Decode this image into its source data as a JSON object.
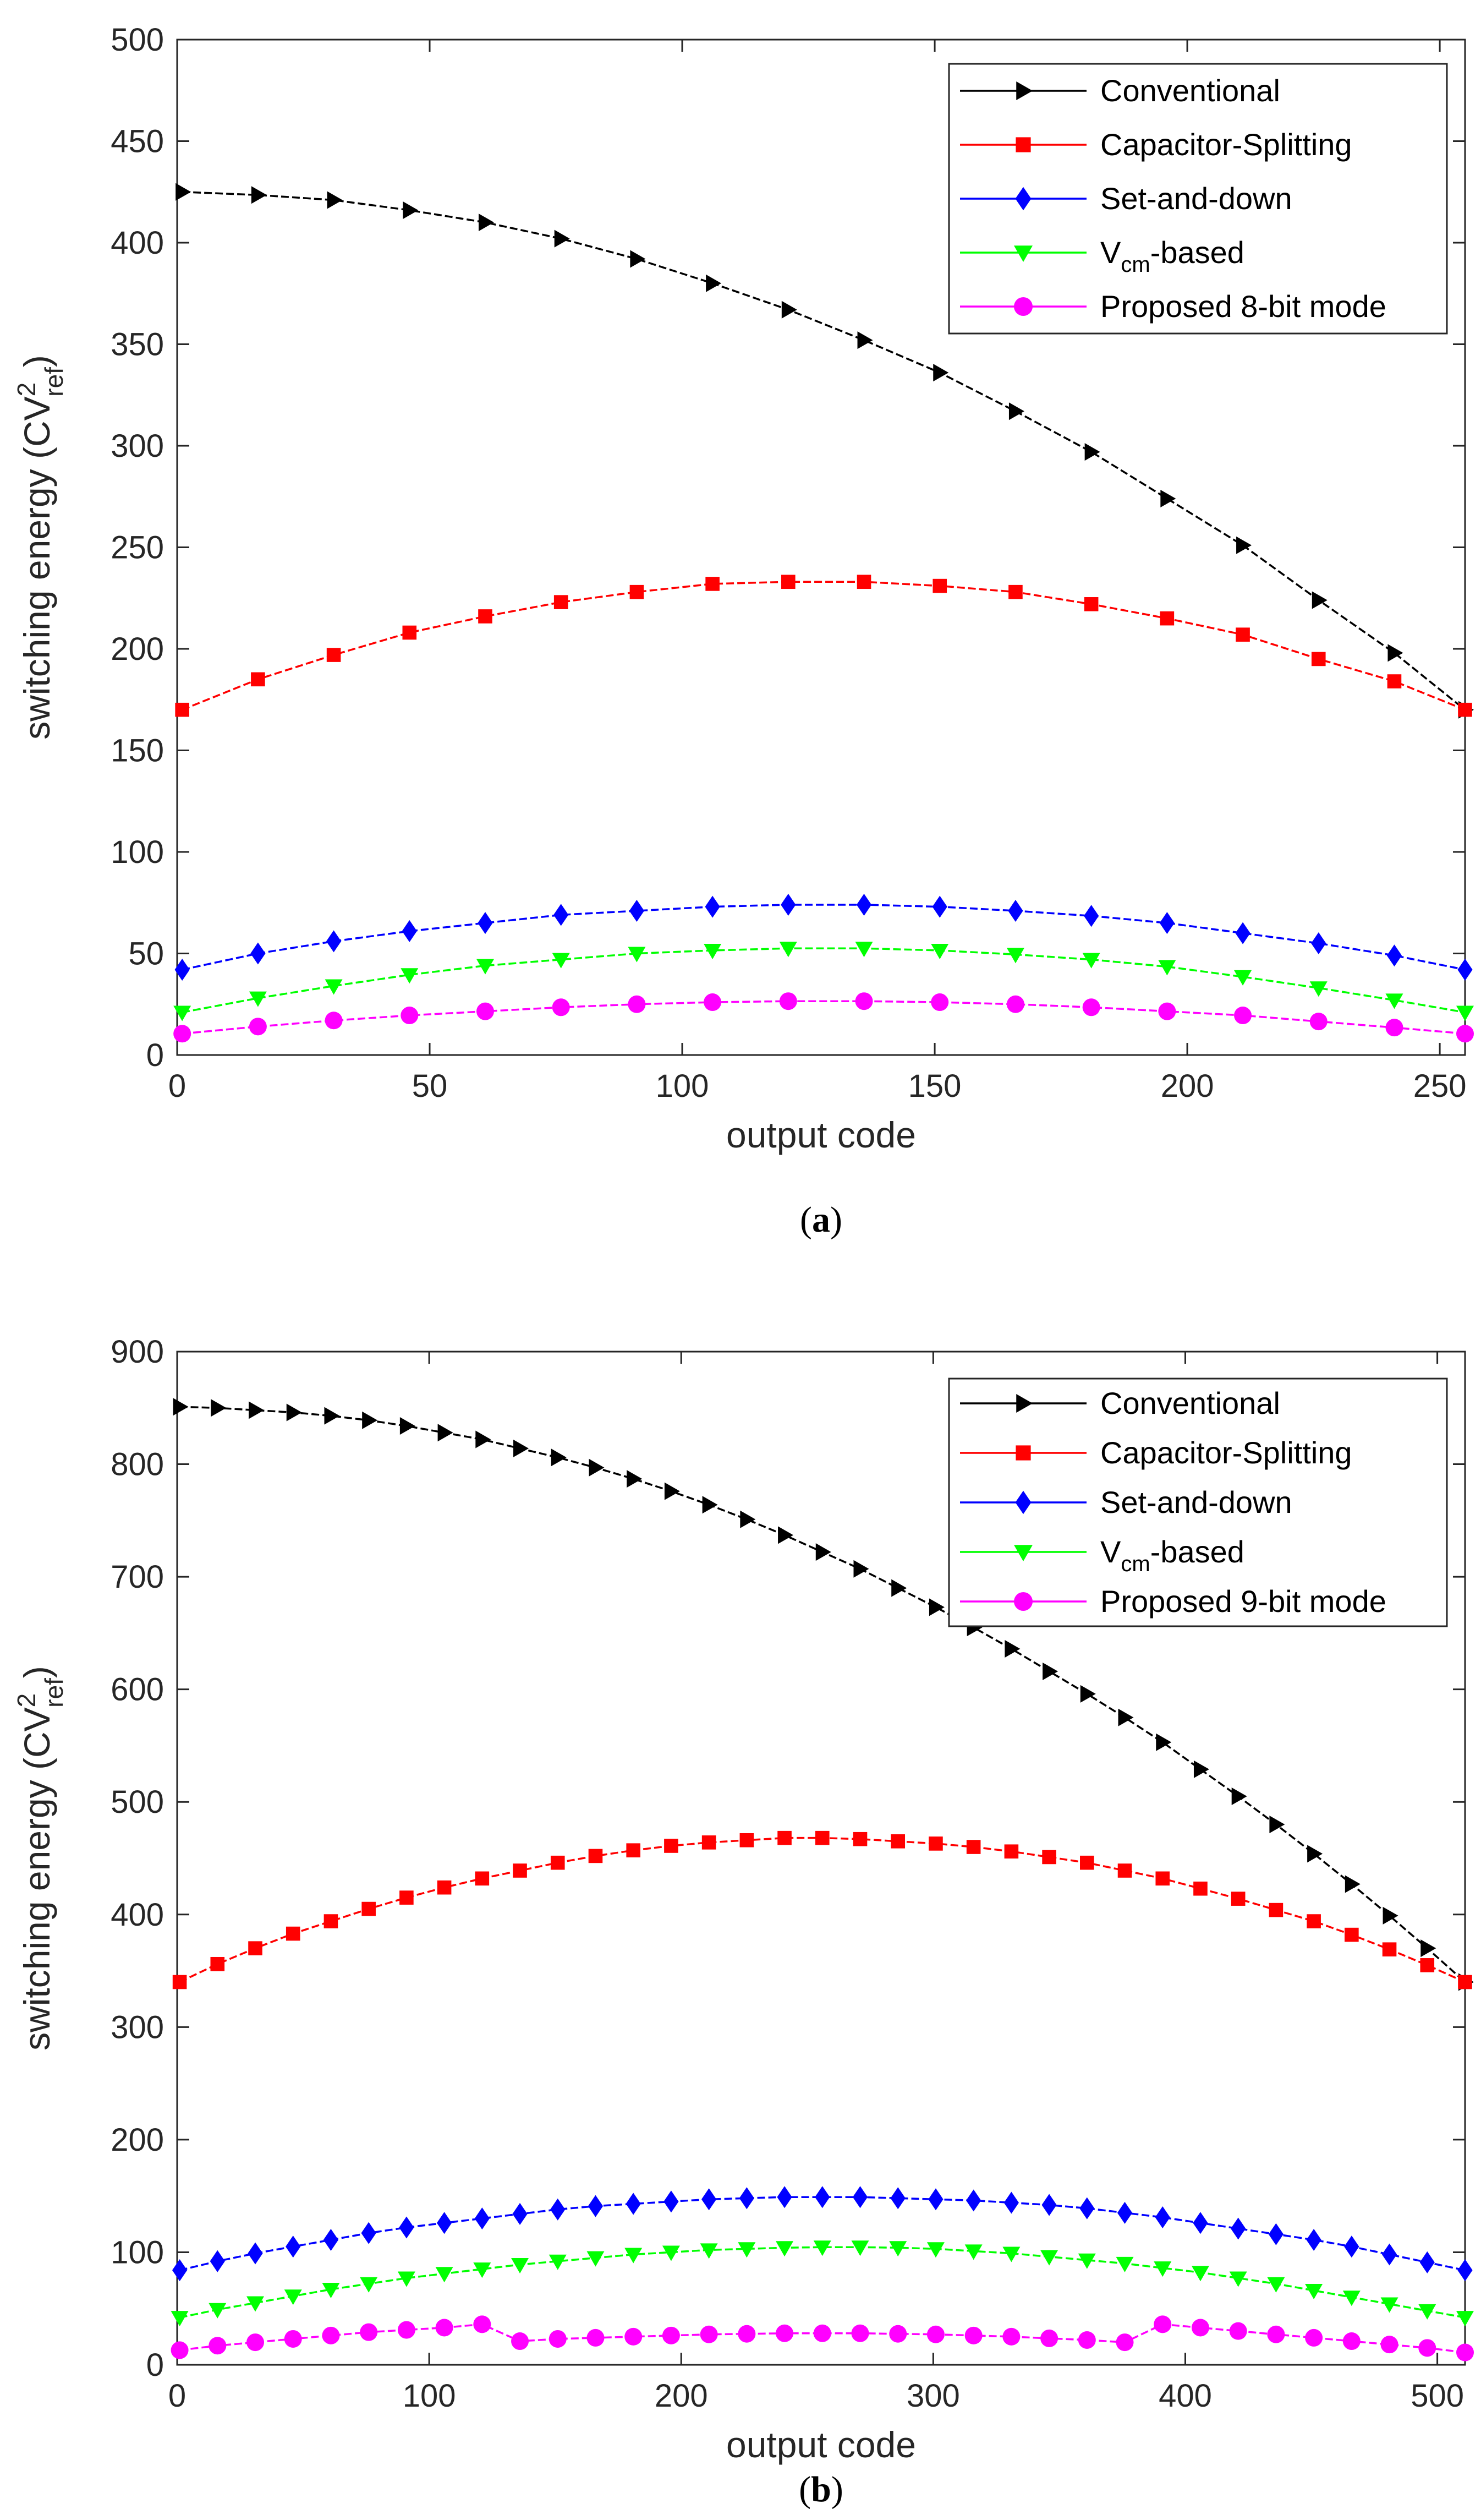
{
  "chart_data": [
    {
      "type": "line",
      "panel_label": "a",
      "xlabel": "output code",
      "ylabel_base": "switching energy (CV",
      "ylabel_sup": "2",
      "ylabel_sub": "ref",
      "ylabel_close": ")",
      "xlim": [
        0,
        255
      ],
      "ylim": [
        0,
        500
      ],
      "xticks": [
        0,
        50,
        100,
        150,
        200,
        250
      ],
      "yticks": [
        0,
        50,
        100,
        150,
        200,
        250,
        300,
        350,
        400,
        450,
        500
      ],
      "legend_position": "top-right",
      "series": [
        {
          "name": "Conventional",
          "color": "#000000",
          "marker": "triangle-right",
          "x": [
            1,
            16,
            31,
            46,
            61,
            76,
            91,
            106,
            121,
            136,
            151,
            166,
            181,
            196,
            211,
            226,
            241,
            255
          ],
          "values": [
            425,
            423.5,
            421,
            416,
            410,
            402,
            392,
            380,
            367,
            352,
            336,
            317,
            297,
            274,
            251,
            224,
            198,
            170
          ]
        },
        {
          "name": "Capacitor-Splitting",
          "color": "#ff0000",
          "marker": "square",
          "x": [
            1,
            16,
            31,
            46,
            61,
            76,
            91,
            106,
            121,
            136,
            151,
            166,
            181,
            196,
            211,
            226,
            241,
            255
          ],
          "values": [
            170,
            185,
            197,
            208,
            216,
            223,
            228,
            232,
            233,
            233,
            231,
            228,
            222,
            215,
            207,
            195,
            184,
            170
          ]
        },
        {
          "name": "Set-and-down",
          "color": "#0000ff",
          "marker": "diamond",
          "x": [
            1,
            16,
            31,
            46,
            61,
            76,
            91,
            106,
            121,
            136,
            151,
            166,
            181,
            196,
            211,
            226,
            241,
            255
          ],
          "values": [
            42,
            50,
            56,
            61,
            65,
            69,
            71,
            73,
            74,
            74,
            73,
            71,
            68.5,
            65,
            60,
            55,
            49,
            42
          ]
        },
        {
          "name_prefix": "V",
          "name_sub": "cm",
          "name_suffix": "-based",
          "color": "#00ff00",
          "marker": "triangle-down",
          "x": [
            1,
            16,
            31,
            46,
            61,
            76,
            91,
            106,
            121,
            136,
            151,
            166,
            181,
            196,
            211,
            226,
            241,
            255
          ],
          "values": [
            21,
            28,
            34,
            39.5,
            44,
            47,
            50,
            51.5,
            52.5,
            52.5,
            51.5,
            49.5,
            47,
            43.5,
            38.5,
            33,
            27,
            21
          ]
        },
        {
          "name": "Proposed 8-bit mode",
          "color": "#ff00ff",
          "marker": "circle",
          "x": [
            1,
            16,
            31,
            46,
            61,
            76,
            91,
            106,
            121,
            136,
            151,
            166,
            181,
            196,
            211,
            226,
            241,
            255
          ],
          "values": [
            10.5,
            14,
            17,
            19.5,
            21.5,
            23.5,
            25,
            26,
            26.5,
            26.5,
            26,
            25,
            23.5,
            21.5,
            19.5,
            16.5,
            13.5,
            10.5
          ]
        }
      ]
    },
    {
      "type": "line",
      "panel_label": "b",
      "xlabel": "output code",
      "ylabel_base": "switching energy (CV",
      "ylabel_sup": "2",
      "ylabel_sub": "ref",
      "ylabel_close": ")",
      "xlim": [
        0,
        511
      ],
      "ylim": [
        0,
        900
      ],
      "xticks": [
        0,
        100,
        200,
        300,
        400,
        500
      ],
      "yticks": [
        0,
        100,
        200,
        300,
        400,
        500,
        600,
        700,
        800,
        900
      ],
      "legend_position": "top-right",
      "series": [
        {
          "name": "Conventional",
          "color": "#000000",
          "marker": "triangle-right",
          "x": [
            1,
            16,
            31,
            46,
            61,
            76,
            91,
            106,
            121,
            136,
            151,
            166,
            181,
            196,
            211,
            226,
            241,
            256,
            271,
            286,
            301,
            316,
            331,
            346,
            361,
            376,
            391,
            406,
            421,
            436,
            451,
            466,
            481,
            496,
            511
          ],
          "values": [
            851,
            850,
            848,
            846,
            843,
            839,
            834,
            828,
            822,
            814,
            806,
            797,
            787,
            776,
            764,
            751,
            737,
            722,
            707,
            690,
            673,
            655,
            636,
            616,
            596,
            575,
            553,
            529,
            505,
            480,
            454,
            427,
            399,
            370,
            340
          ]
        },
        {
          "name": "Capacitor-Splitting",
          "color": "#ff0000",
          "marker": "square",
          "x": [
            1,
            16,
            31,
            46,
            61,
            76,
            91,
            106,
            121,
            136,
            151,
            166,
            181,
            196,
            211,
            226,
            241,
            256,
            271,
            286,
            301,
            316,
            331,
            346,
            361,
            376,
            391,
            406,
            421,
            436,
            451,
            466,
            481,
            496,
            511
          ],
          "values": [
            340,
            356,
            370,
            383,
            394,
            405,
            415,
            424,
            432,
            439,
            446,
            452,
            457,
            461,
            464,
            466,
            468,
            468,
            467,
            465,
            463,
            460,
            456,
            451,
            446,
            439,
            432,
            423,
            414,
            404,
            394,
            382,
            369,
            355,
            340
          ]
        },
        {
          "name": "Set-and-down",
          "color": "#0000ff",
          "marker": "diamond",
          "x": [
            1,
            16,
            31,
            46,
            61,
            76,
            91,
            106,
            121,
            136,
            151,
            166,
            181,
            196,
            211,
            226,
            241,
            256,
            271,
            286,
            301,
            316,
            331,
            346,
            361,
            376,
            391,
            406,
            421,
            436,
            451,
            466,
            481,
            496,
            511
          ],
          "values": [
            84,
            92,
            99,
            105,
            111,
            117,
            122,
            126,
            130,
            134,
            138,
            141,
            143,
            145,
            147,
            148,
            149,
            149,
            149,
            148,
            147,
            146,
            144,
            142,
            139,
            135,
            131,
            126,
            121,
            116,
            111,
            105,
            98,
            91,
            84
          ]
        },
        {
          "name_prefix": "V",
          "name_sub": "cm",
          "name_suffix": "-based",
          "color": "#00ff00",
          "marker": "triangle-down",
          "x": [
            1,
            16,
            31,
            46,
            61,
            76,
            91,
            106,
            121,
            136,
            151,
            166,
            181,
            196,
            211,
            226,
            241,
            256,
            271,
            286,
            301,
            316,
            331,
            346,
            361,
            376,
            391,
            406,
            421,
            436,
            451,
            466,
            481,
            496,
            511
          ],
          "values": [
            42,
            49,
            55,
            61,
            67,
            72,
            77,
            81,
            85,
            89,
            92,
            95,
            98,
            100,
            102,
            103,
            104,
            104.5,
            104.5,
            104,
            103,
            101,
            99,
            96,
            93,
            90,
            86,
            82,
            77,
            72,
            66,
            60,
            54,
            48,
            42
          ]
        },
        {
          "name": "Proposed 9-bit mode",
          "color": "#ff00ff",
          "marker": "circle",
          "x": [
            1,
            16,
            31,
            46,
            61,
            76,
            91,
            106,
            121,
            136,
            151,
            166,
            181,
            196,
            211,
            226,
            241,
            256,
            271,
            286,
            301,
            316,
            331,
            346,
            361,
            376,
            391,
            406,
            421,
            436,
            451,
            466,
            481,
            496,
            511
          ],
          "values": [
            13,
            17,
            20,
            23,
            26,
            29,
            31,
            33,
            36,
            21,
            23,
            24,
            25,
            26,
            27,
            27.5,
            28,
            28,
            28,
            27.5,
            27,
            26,
            25,
            23.5,
            22,
            20,
            36,
            33,
            30,
            27,
            24,
            21,
            18,
            15,
            11
          ]
        }
      ]
    }
  ]
}
